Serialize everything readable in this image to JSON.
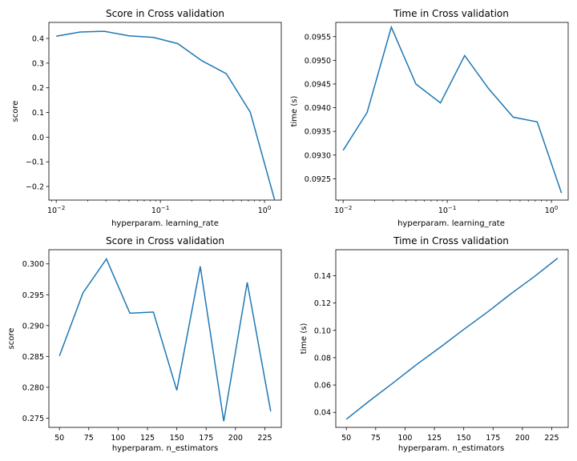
{
  "series_color": "#1f77b4",
  "chart_data": [
    {
      "type": "line",
      "title": "Score in Cross validation",
      "xlabel": "hyperparam. learning_rate",
      "ylabel": "score",
      "xscale": "log",
      "xlim": [
        0.0085,
        1.45
      ],
      "ylim": [
        -0.255,
        0.465
      ],
      "grid": false,
      "x_ticks": [
        0.01,
        0.1,
        1
      ],
      "x_tick_labels": [
        [
          "10",
          "−2"
        ],
        [
          "10",
          "−1"
        ],
        [
          "10",
          "0"
        ]
      ],
      "y_ticks": [
        -0.2,
        -0.1,
        0.0,
        0.1,
        0.2,
        0.3,
        0.4
      ],
      "y_tick_labels": [
        "−0.2",
        "−0.1",
        "0.0",
        "0.1",
        "0.2",
        "0.3",
        "0.4"
      ],
      "x": [
        0.01,
        0.017,
        0.029,
        0.05,
        0.086,
        0.147,
        0.25,
        0.43,
        0.73,
        1.25
      ],
      "y": [
        0.409,
        0.426,
        0.429,
        0.411,
        0.404,
        0.379,
        0.31,
        0.257,
        0.101,
        -0.253
      ]
    },
    {
      "type": "line",
      "title": "Time in Cross validation",
      "xlabel": "hyperparam. learning_rate",
      "ylabel": "time (s)",
      "xscale": "log",
      "xlim": [
        0.0085,
        1.45
      ],
      "ylim": [
        0.09205,
        0.0958
      ],
      "grid": false,
      "x_ticks": [
        0.01,
        0.1,
        1
      ],
      "x_tick_labels": [
        [
          "10",
          "−2"
        ],
        [
          "10",
          "−1"
        ],
        [
          "10",
          "0"
        ]
      ],
      "y_ticks": [
        0.0925,
        0.093,
        0.0935,
        0.094,
        0.0945,
        0.095,
        0.0955
      ],
      "y_tick_labels": [
        "0.0925",
        "0.0930",
        "0.0935",
        "0.0940",
        "0.0945",
        "0.0950",
        "0.0955"
      ],
      "x": [
        0.01,
        0.017,
        0.029,
        0.05,
        0.086,
        0.147,
        0.25,
        0.43,
        0.73,
        1.25
      ],
      "y": [
        0.0931,
        0.0939,
        0.0957,
        0.0945,
        0.0941,
        0.0951,
        0.0944,
        0.0938,
        0.0937,
        0.0922
      ]
    },
    {
      "type": "line",
      "title": "Score in Cross validation",
      "xlabel": "hyperparam. n_estimators",
      "ylabel": "score",
      "xscale": "linear",
      "xlim": [
        41,
        239
      ],
      "ylim": [
        0.2735,
        0.3023
      ],
      "grid": false,
      "x_ticks": [
        50,
        75,
        100,
        125,
        150,
        175,
        200,
        225
      ],
      "x_tick_labels": [
        "50",
        "75",
        "100",
        "125",
        "150",
        "175",
        "200",
        "225"
      ],
      "y_ticks": [
        0.275,
        0.28,
        0.285,
        0.29,
        0.295,
        0.3
      ],
      "y_tick_labels": [
        "0.275",
        "0.280",
        "0.285",
        "0.290",
        "0.295",
        "0.300"
      ],
      "x": [
        50,
        70,
        90,
        110,
        130,
        150,
        170,
        190,
        210,
        230
      ],
      "y": [
        0.2851,
        0.2953,
        0.3008,
        0.292,
        0.2922,
        0.2795,
        0.2996,
        0.2745,
        0.297,
        0.2761
      ]
    },
    {
      "type": "line",
      "title": "Time in Cross validation",
      "xlabel": "hyperparam. n_estimators",
      "ylabel": "time (s)",
      "xscale": "linear",
      "xlim": [
        41,
        239
      ],
      "ylim": [
        0.029,
        0.159
      ],
      "grid": false,
      "x_ticks": [
        50,
        75,
        100,
        125,
        150,
        175,
        200,
        225
      ],
      "x_tick_labels": [
        "50",
        "75",
        "100",
        "125",
        "150",
        "175",
        "200",
        "225"
      ],
      "y_ticks": [
        0.04,
        0.06,
        0.08,
        0.1,
        0.12,
        0.14
      ],
      "y_tick_labels": [
        "0.04",
        "0.06",
        "0.08",
        "0.10",
        "0.12",
        "0.14"
      ],
      "x": [
        50,
        70,
        90,
        110,
        130,
        150,
        170,
        190,
        210,
        230
      ],
      "y": [
        0.035,
        0.0486,
        0.0617,
        0.0751,
        0.0876,
        0.1006,
        0.1132,
        0.1266,
        0.1392,
        0.1528
      ]
    }
  ]
}
